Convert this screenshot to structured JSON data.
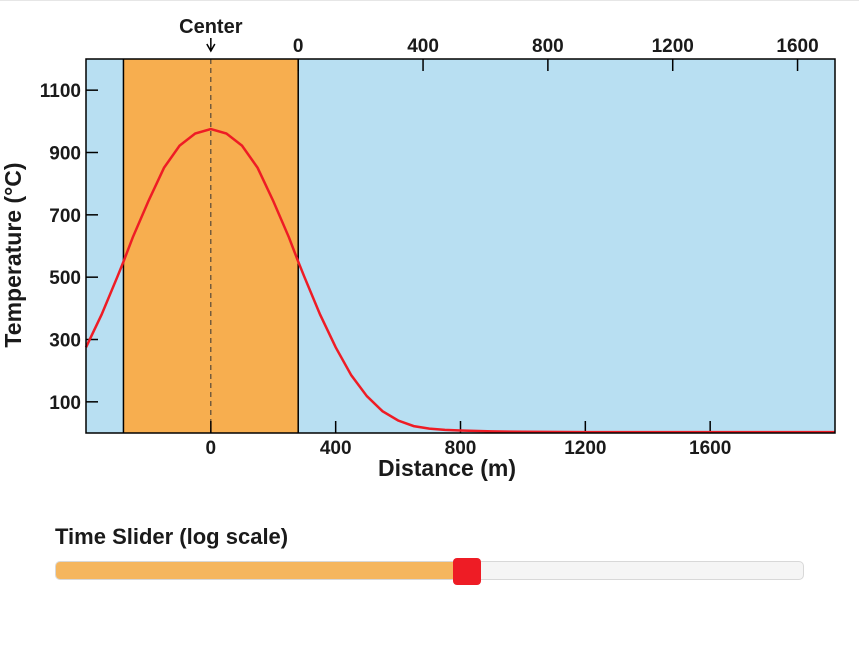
{
  "chart_data": {
    "type": "line",
    "xlabel": "Distance (m)",
    "ylabel": "Temperature (°C)",
    "x_bottom_ticks": [
      "0",
      "400",
      "800",
      "1200",
      "1600"
    ],
    "x_top_ticks": [
      "0",
      "400",
      "800",
      "1200",
      "1600"
    ],
    "y_ticks": [
      "100",
      "300",
      "500",
      "700",
      "900",
      "1100"
    ],
    "center_label": "Center",
    "xlim": [
      -400,
      2000
    ],
    "ylim": [
      0,
      1200
    ],
    "intrusion": {
      "x_start": -280,
      "x_end": 280,
      "color": "#f7ae4f"
    },
    "host_rock_color": "#b8dff2",
    "series": [
      {
        "color": "#ee1c25",
        "x": [
          -400,
          -350,
          -300,
          -280,
          -250,
          -200,
          -150,
          -100,
          -50,
          0,
          50,
          100,
          150,
          200,
          250,
          280,
          300,
          350,
          400,
          450,
          500,
          550,
          600,
          650,
          700,
          750,
          800,
          900,
          1000,
          1200,
          1400,
          1600,
          1800,
          2000
        ],
        "y": [
          275,
          380,
          500,
          550,
          628,
          744,
          851,
          922,
          961,
          975,
          961,
          922,
          851,
          744,
          628,
          550,
          500,
          380,
          275,
          185,
          118,
          70,
          40,
          22,
          14,
          10,
          8,
          5,
          4,
          3,
          3,
          3,
          3,
          3
        ]
      }
    ]
  },
  "slider": {
    "label": "Time Slider (log scale)",
    "value": 0.55,
    "fill_color": "#f5b65e",
    "thumb_color": "#ee1c25"
  }
}
